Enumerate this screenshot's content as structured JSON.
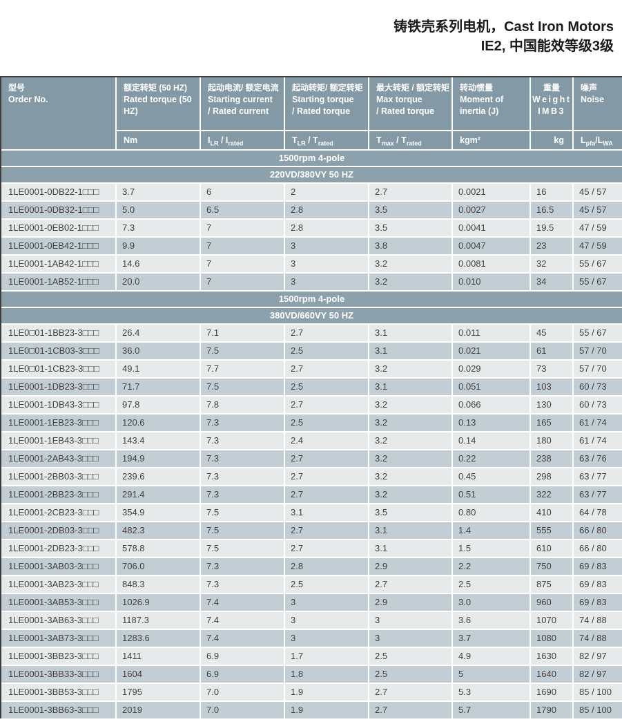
{
  "page_title": {
    "line1": "铸铁壳系列电机，Cast Iron Motors",
    "line2": "IE2, 中国能效等级3级"
  },
  "colors": {
    "header_bg": "#8499A6",
    "band_bg": "#8DA1AC",
    "row_light": "#E7EAEB",
    "row_dark": "#C3CED4",
    "header_text": "#FFFFFF",
    "data_text": "#3F3F3F",
    "table_border": "#3C3C3C"
  },
  "table": {
    "header": {
      "order_no": {
        "zh": "型号",
        "en": "Order No."
      },
      "cols": [
        {
          "zh": "额定转矩 (50 HZ)",
          "en": "Rated torque (50 HZ)"
        },
        {
          "zh": "起动电流/ 额定电流",
          "en": "Starting current\n/ Rated current"
        },
        {
          "zh": "起动转矩/ 额定转矩",
          "en": "Starting torque\n/ Rated torque"
        },
        {
          "zh": "最大转矩 / 额定转矩",
          "en": "Max torque\n/ Rated torque"
        },
        {
          "zh": "转动惯量",
          "en": "Moment  of\ninertia (J)"
        },
        {
          "zh": "重量",
          "en": "Weight",
          "extra": "IMB3"
        },
        {
          "zh": "噪声",
          "en": "Noise"
        }
      ],
      "units": [
        {
          "segs": [
            {
              "t": "Nm"
            }
          ]
        },
        {
          "segs": [
            {
              "t": "I"
            },
            {
              "t": "LR",
              "sub": true
            },
            {
              "t": " / I"
            },
            {
              "t": "rated",
              "sub": true
            }
          ]
        },
        {
          "segs": [
            {
              "t": "T"
            },
            {
              "t": "LR",
              "sub": true
            },
            {
              "t": " / T"
            },
            {
              "t": "rated",
              "sub": true
            }
          ]
        },
        {
          "segs": [
            {
              "t": "T"
            },
            {
              "t": "max",
              "sub": true
            },
            {
              "t": " / T"
            },
            {
              "t": "rated",
              "sub": true
            }
          ]
        },
        {
          "segs": [
            {
              "t": "kgm²"
            }
          ]
        },
        {
          "segs": [
            {
              "t": "kg"
            }
          ]
        },
        {
          "segs": [
            {
              "t": "L"
            },
            {
              "t": "pfa",
              "sub": true
            },
            {
              "t": "/L"
            },
            {
              "t": "WA",
              "sub": true
            }
          ]
        }
      ]
    },
    "sections": [
      {
        "band_speed": "1500rpm 4-pole",
        "band_voltage": "220VD/380VY  50 HZ",
        "rows": [
          [
            "1LE0001-0DB22-1□□□",
            "3.7",
            "6",
            "2",
            "2.7",
            "0.0021",
            "16",
            "45 / 57"
          ],
          [
            "1LE0001-0DB32-1□□□",
            "5.0",
            "6.5",
            "2.8",
            "3.5",
            "0.0027",
            "16.5",
            "45 / 57"
          ],
          [
            "1LE0001-0EB02-1□□□",
            "7.3",
            "7",
            "2.8",
            "3.5",
            "0.0041",
            "19.5",
            "47 / 59"
          ],
          [
            "1LE0001-0EB42-1□□□",
            "9.9",
            "7",
            "3",
            "3.8",
            "0.0047",
            "23",
            "47 / 59"
          ],
          [
            "1LE0001-1AB42-1□□□",
            "14.6",
            "7",
            "3",
            "3.2",
            "0.0081",
            "32",
            "55 / 67"
          ],
          [
            "1LE0001-1AB52-1□□□",
            "20.0",
            "7",
            "3",
            "3.2",
            "0.010",
            "34",
            "55 / 67"
          ]
        ]
      },
      {
        "band_speed": "1500rpm 4-pole",
        "band_voltage": "380VD/660VY  50 HZ",
        "rows": [
          [
            "1LE0□01-1BB23-3□□□",
            "26.4",
            "7.1",
            "2.7",
            "3.1",
            "0.011",
            "45",
            "55 / 67"
          ],
          [
            "1LE0□01-1CB03-3□□□",
            "36.0",
            "7.5",
            "2.5",
            "3.1",
            "0.021",
            "61",
            "57 / 70"
          ],
          [
            "1LE0□01-1CB23-3□□□",
            "49.1",
            "7.7",
            "2.7",
            "3.2",
            "0.029",
            "73",
            "57 / 70"
          ],
          [
            "1LE0001-1DB23-3□□□",
            "71.7",
            "7.5",
            "2.5",
            "3.1",
            "0.051",
            "103",
            "60 / 73"
          ],
          [
            "1LE0001-1DB43-3□□□",
            "97.8",
            "7.8",
            "2.7",
            "3.2",
            "0.066",
            "130",
            "60 / 73"
          ],
          [
            "1LE0001-1EB23-3□□□",
            "120.6",
            "7.3",
            "2.5",
            "3.2",
            "0.13",
            "165",
            "61 / 74"
          ],
          [
            "1LE0001-1EB43-3□□□",
            "143.4",
            "7.3",
            "2.4",
            "3.2",
            "0.14",
            "180",
            "61 / 74"
          ],
          [
            "1LE0001-2AB43-3□□□",
            "194.9",
            "7.3",
            "2.7",
            "3.2",
            "0.22",
            "238",
            "63 / 76"
          ],
          [
            "1LE0001-2BB03-3□□□",
            "239.6",
            "7.3",
            "2.7",
            "3.2",
            "0.45",
            "298",
            "63 / 77"
          ],
          [
            "1LE0001-2BB23-3□□□",
            "291.4",
            "7.3",
            "2.7",
            "3.2",
            "0.51",
            "322",
            "63 / 77"
          ],
          [
            "1LE0001-2CB23-3□□□",
            "354.9",
            "7.5",
            "3.1",
            "3.5",
            "0.80",
            "410",
            "64 / 78"
          ],
          [
            "1LE0001-2DB03-3□□□",
            "482.3",
            "7.5",
            "2.7",
            "3.1",
            "1.4",
            "555",
            "66 / 80"
          ],
          [
            "1LE0001-2DB23-3□□□",
            "578.8",
            "7.5",
            "2.7",
            "3.1",
            "1.5",
            "610",
            "66 / 80"
          ],
          [
            "1LE0001-3AB03-3□□□",
            "706.0",
            "7.3",
            "2.8",
            "2.9",
            "2.2",
            "750",
            "69 / 83"
          ],
          [
            "1LE0001-3AB23-3□□□",
            "848.3",
            "7.3",
            "2.5",
            "2.7",
            "2.5",
            "875",
            "69 / 83"
          ],
          [
            "1LE0001-3AB53-3□□□",
            "1026.9",
            "7.4",
            "3",
            "2.9",
            "3.0",
            "960",
            "69 / 83"
          ],
          [
            "1LE0001-3AB63-3□□□",
            "1187.3",
            "7.4",
            "3",
            "3",
            "3.6",
            "1070",
            "74 / 88"
          ],
          [
            "1LE0001-3AB73-3□□□",
            "1283.6",
            "7.4",
            "3",
            "3",
            "3.7",
            "1080",
            "74 / 88"
          ],
          [
            "1LE0001-3BB23-3□□□",
            "1411",
            "6.9",
            "1.7",
            "2.5",
            "4.9",
            "1630",
            "82 / 97"
          ],
          [
            "1LE0001-3BB33-3□□□",
            "1604",
            "6.9",
            "1.8",
            "2.5",
            "5",
            "1640",
            "82 / 97"
          ],
          [
            "1LE0001-3BB53-3□□□",
            "1795",
            "7.0",
            "1.9",
            "2.7",
            "5.3",
            "1690",
            "85 / 100"
          ],
          [
            "1LE0001-3BB63-3□□□",
            "2019",
            "7.0",
            "1.9",
            "2.7",
            "5.7",
            "1790",
            "85 / 100"
          ]
        ]
      }
    ]
  }
}
